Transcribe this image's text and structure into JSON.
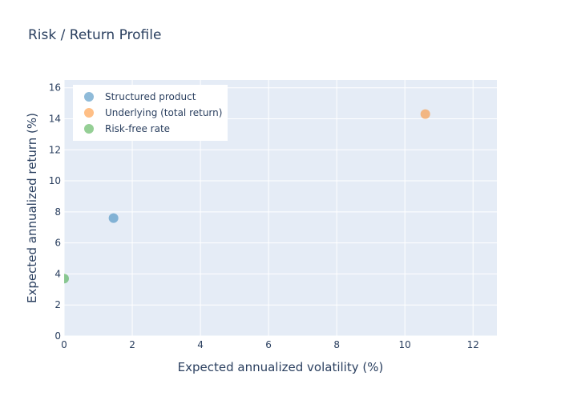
{
  "chart_data": {
    "type": "scatter",
    "title": "Risk / Return Profile",
    "xlabel": "Expected annualized volatility (%)",
    "ylabel": "Expected annualized return (%)",
    "xlim": [
      0,
      12.7
    ],
    "ylim": [
      0,
      16.5
    ],
    "xticks": [
      "0",
      "2",
      "4",
      "6",
      "8",
      "10",
      "12"
    ],
    "yticks": [
      "0",
      "2",
      "4",
      "6",
      "8",
      "10",
      "12",
      "14",
      "16"
    ],
    "grid": true,
    "legend_position": "top-left",
    "series": [
      {
        "name": "Structured product",
        "color": "#1f77b4",
        "x": [
          1.45
        ],
        "y": [
          7.6
        ]
      },
      {
        "name": "Underlying (total return)",
        "color": "#ff7f0e",
        "x": [
          10.6
        ],
        "y": [
          14.3
        ]
      },
      {
        "name": "Risk-free rate",
        "color": "#2ca02c",
        "x": [
          0.0
        ],
        "y": [
          3.7
        ]
      }
    ]
  },
  "colors": {
    "plot_bg": "#e5ecf6",
    "grid": "#ffffff",
    "text": "#2a3f5f"
  }
}
